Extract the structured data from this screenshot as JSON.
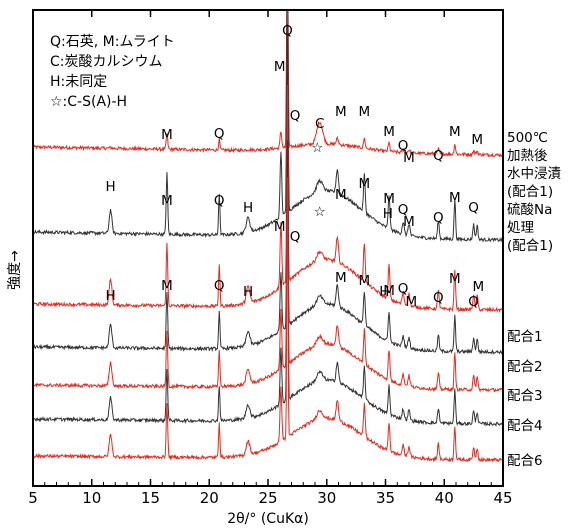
{
  "chart_data": {
    "type": "line",
    "xlabel": "2θ/° (CuKα)",
    "ylabel": "強度→",
    "xlim": [
      5,
      45
    ],
    "x_ticks": [
      5,
      10,
      15,
      20,
      25,
      30,
      35,
      40,
      45
    ],
    "y_ticks_shown": false,
    "legend": [
      "Q:石英, M:ムライト",
      "C:炭酸カルシウム",
      "H:未同定",
      "☆:C-S(A)-H"
    ],
    "peaks": [
      {
        "x": 11.6,
        "label": "H"
      },
      {
        "x": 16.4,
        "label": "M"
      },
      {
        "x": 20.85,
        "label": "Q"
      },
      {
        "x": 23.3,
        "label": "H"
      },
      {
        "x": 26.1,
        "label": "M"
      },
      {
        "x": 26.65,
        "label": "Q"
      },
      {
        "x": 29.4,
        "label": "C"
      },
      {
        "x": 30.9,
        "label": "M"
      },
      {
        "x": 33.2,
        "label": "M"
      },
      {
        "x": 35.3,
        "label": "M"
      },
      {
        "x": 36.5,
        "label": "Q"
      },
      {
        "x": 37.0,
        "label": "M"
      },
      {
        "x": 39.5,
        "label": "Q"
      },
      {
        "x": 40.9,
        "label": "M"
      },
      {
        "x": 42.5,
        "label": "Q"
      },
      {
        "x": 42.8,
        "label": "M"
      }
    ],
    "series": [
      {
        "name": "500℃加熱後水中浸漬(配合1)",
        "label_lines": [
          "500℃",
          "加熱後",
          "水中浸漬",
          "(配合1)"
        ],
        "color": "#e8281e"
      },
      {
        "name": "硫酸Na処理(配合1)",
        "label_lines": [
          "硫酸Na",
          "処理",
          "(配合1)"
        ],
        "color": "#333333"
      },
      {
        "name": "配合1",
        "label_lines": [
          "配合1"
        ],
        "color": "#e8281e"
      },
      {
        "name": "配合2",
        "label_lines": [
          "配合2"
        ],
        "color": "#333333"
      },
      {
        "name": "配合3",
        "label_lines": [
          "配合3"
        ],
        "color": "#e8281e"
      },
      {
        "name": "配合4",
        "label_lines": [
          "配合4"
        ],
        "color": "#333333"
      },
      {
        "name": "配合6",
        "label_lines": [
          "配合6"
        ],
        "color": "#e8281e"
      }
    ]
  }
}
